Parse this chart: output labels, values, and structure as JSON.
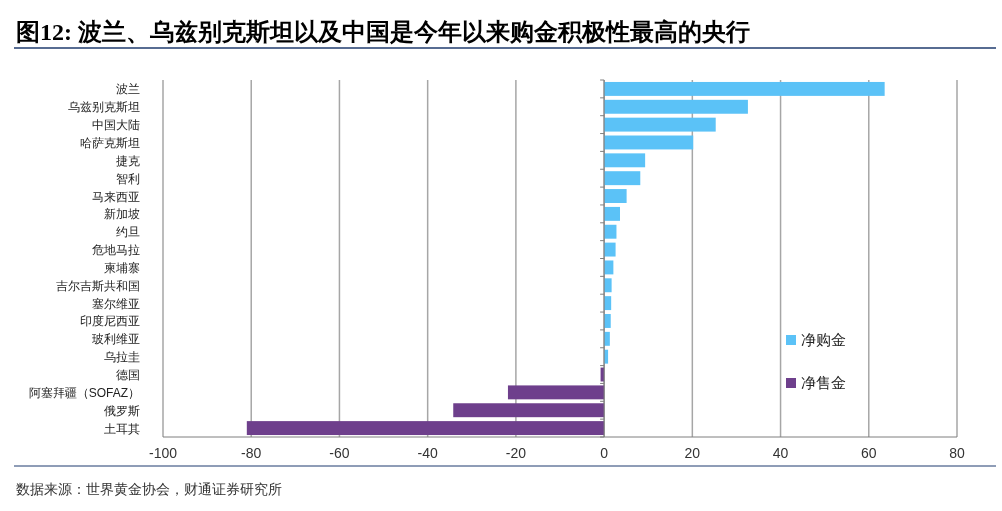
{
  "chart_data": {
    "type": "bar",
    "orientation": "horizontal",
    "title": "图12: 波兰、乌兹别克斯坦以及中国是今年以来购金积极性最高的央行",
    "categories": [
      "波兰",
      "乌兹别克斯坦",
      "中国大陆",
      "哈萨克斯坦",
      "捷克",
      "智利",
      "马来西亚",
      "新加坡",
      "约旦",
      "危地马拉",
      "柬埔寨",
      "吉尔吉斯共和国",
      "塞尔维亚",
      "印度尼西亚",
      "玻利维亚",
      "乌拉圭",
      "德国",
      "阿塞拜疆（SOFAZ）",
      "俄罗斯",
      "土耳其"
    ],
    "series": [
      {
        "name": "净购金",
        "color": "#5bc2f7",
        "values": [
          63.6,
          32.6,
          25.3,
          20.2,
          9.3,
          8.2,
          5.1,
          3.6,
          2.8,
          2.6,
          2.1,
          1.7,
          1.6,
          1.5,
          1.3,
          0.9,
          null,
          null,
          null,
          null
        ]
      },
      {
        "name": "净售金",
        "color": "#6e3f8c",
        "values": [
          null,
          null,
          null,
          null,
          null,
          null,
          null,
          null,
          null,
          null,
          null,
          null,
          null,
          null,
          null,
          null,
          -0.8,
          -21.8,
          -34.2,
          -81.0
        ]
      }
    ],
    "xlim": [
      -100,
      80
    ],
    "xticks": [
      -100,
      -80,
      -60,
      -40,
      -20,
      0,
      20,
      40,
      60,
      80
    ],
    "grid": "x",
    "legend": "right",
    "annotations": [
      "数据来源：世界黄金协会，财通证券研究所"
    ]
  }
}
